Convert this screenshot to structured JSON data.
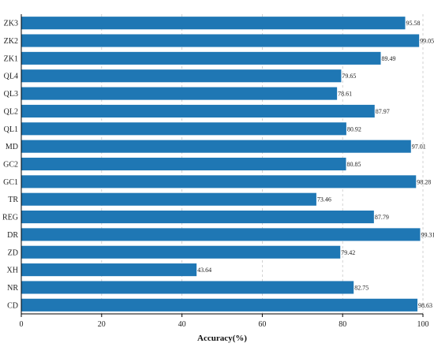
{
  "chart_data": {
    "type": "bar",
    "orientation": "horizontal",
    "categories": [
      "ZK3",
      "ZK2",
      "ZK1",
      "QL4",
      "QL3",
      "QL2",
      "QL1",
      "MD",
      "GC2",
      "GC1",
      "TR",
      "REG",
      "DR",
      "ZD",
      "XH",
      "NR",
      "CD"
    ],
    "values": [
      95.58,
      99.05,
      89.49,
      79.65,
      78.61,
      87.97,
      80.92,
      97.01,
      80.85,
      98.28,
      73.46,
      87.79,
      99.31,
      79.42,
      43.64,
      82.75,
      98.63
    ],
    "value_labels": [
      "95.58",
      "99.05",
      "89.49",
      "79.65",
      "78.61",
      "87.97",
      "80.92",
      "97.01",
      "80.85",
      "98.28",
      "73.46",
      "87.79",
      "99.31",
      "79.42",
      "43.64",
      "82.75",
      "98.63"
    ],
    "xlabel": "Accuracy(%)",
    "ylabel": "",
    "xlim": [
      0,
      100
    ],
    "xticks": [
      0,
      20,
      40,
      60,
      80,
      100
    ],
    "xtick_labels": [
      "0",
      "20",
      "40",
      "60",
      "80",
      "100"
    ],
    "grid": "vertical dashed",
    "bar_color": "#1f77b4"
  }
}
